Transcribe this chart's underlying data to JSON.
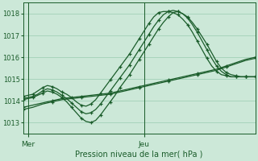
{
  "bg_color": "#cce8d8",
  "grid_color": "#99ccb0",
  "line_color": "#1a5c2a",
  "axis_color": "#1a5c2a",
  "xlabel": "Pression niveau de la mer( hPa )",
  "ylim": [
    1012.5,
    1018.5
  ],
  "yticks": [
    1013,
    1014,
    1015,
    1016,
    1017,
    1018
  ],
  "xlim": [
    0,
    48
  ],
  "mer_x": 1,
  "jeu_x": 25,
  "figsize": [
    3.2,
    2.0
  ],
  "dpi": 100,
  "series_flat_0": {
    "x": [
      0,
      2,
      4,
      6,
      8,
      10,
      12,
      14,
      16,
      18,
      20,
      22,
      24,
      26,
      28,
      30,
      32,
      34,
      36,
      38,
      40,
      42,
      44,
      46,
      48
    ],
    "y": [
      1013.7,
      1013.8,
      1013.9,
      1014.0,
      1014.1,
      1014.15,
      1014.2,
      1014.25,
      1014.3,
      1014.35,
      1014.45,
      1014.55,
      1014.65,
      1014.75,
      1014.85,
      1014.95,
      1015.05,
      1015.15,
      1015.25,
      1015.35,
      1015.45,
      1015.6,
      1015.75,
      1015.9,
      1016.0
    ]
  },
  "series_flat_1": {
    "x": [
      0,
      2,
      4,
      6,
      8,
      10,
      12,
      14,
      16,
      18,
      20,
      22,
      24,
      26,
      28,
      30,
      32,
      34,
      36,
      38,
      40,
      42,
      44,
      46,
      48
    ],
    "y": [
      1013.6,
      1013.7,
      1013.85,
      1013.95,
      1014.05,
      1014.1,
      1014.15,
      1014.2,
      1014.25,
      1014.3,
      1014.4,
      1014.5,
      1014.6,
      1014.7,
      1014.8,
      1014.9,
      1015.0,
      1015.1,
      1015.2,
      1015.3,
      1015.4,
      1015.55,
      1015.7,
      1015.85,
      1015.95
    ]
  },
  "series_dip_0": {
    "x": [
      0,
      1,
      2,
      3,
      4,
      5,
      6,
      7,
      8,
      9,
      10,
      11,
      12,
      13,
      14,
      15,
      16,
      17,
      18,
      19,
      20,
      21,
      22,
      23,
      24,
      25,
      26,
      27,
      28,
      29,
      30,
      31,
      32,
      33,
      34,
      35,
      36,
      37,
      38,
      39,
      40,
      41,
      42,
      43,
      44,
      45,
      46,
      47,
      48
    ],
    "y": [
      1014.05,
      1014.1,
      1014.15,
      1014.25,
      1014.35,
      1014.45,
      1014.4,
      1014.3,
      1014.15,
      1013.95,
      1013.7,
      1013.45,
      1013.2,
      1013.05,
      1013.0,
      1013.1,
      1013.35,
      1013.65,
      1013.95,
      1014.25,
      1014.6,
      1014.9,
      1015.2,
      1015.55,
      1015.9,
      1016.25,
      1016.6,
      1016.95,
      1017.3,
      1017.6,
      1017.85,
      1018.05,
      1018.1,
      1018.0,
      1017.85,
      1017.6,
      1017.3,
      1016.95,
      1016.6,
      1016.2,
      1015.8,
      1015.5,
      1015.3,
      1015.2,
      1015.15,
      1015.1,
      1015.1,
      1015.1,
      1015.1
    ]
  },
  "series_dip_1": {
    "x": [
      0,
      1,
      2,
      3,
      4,
      5,
      6,
      7,
      8,
      9,
      10,
      11,
      12,
      13,
      14,
      15,
      16,
      17,
      18,
      19,
      20,
      21,
      22,
      23,
      24,
      25,
      26,
      27,
      28,
      29,
      30,
      31,
      32,
      33,
      34,
      35,
      36,
      37,
      38,
      39,
      40,
      41,
      42,
      43,
      44,
      45,
      46,
      47,
      48
    ],
    "y": [
      1014.1,
      1014.15,
      1014.2,
      1014.3,
      1014.45,
      1014.55,
      1014.5,
      1014.4,
      1014.25,
      1014.1,
      1013.9,
      1013.7,
      1013.5,
      1013.4,
      1013.45,
      1013.6,
      1013.85,
      1014.15,
      1014.45,
      1014.75,
      1015.05,
      1015.35,
      1015.65,
      1016.0,
      1016.35,
      1016.7,
      1017.05,
      1017.4,
      1017.7,
      1017.95,
      1018.1,
      1018.15,
      1018.1,
      1018.0,
      1017.8,
      1017.5,
      1017.15,
      1016.75,
      1016.35,
      1015.95,
      1015.6,
      1015.35,
      1015.2,
      1015.1,
      1015.1,
      1015.1,
      1015.1,
      1015.1,
      1015.1
    ]
  },
  "series_dip_2": {
    "x": [
      0,
      1,
      2,
      3,
      4,
      5,
      6,
      7,
      8,
      9,
      10,
      11,
      12,
      13,
      14,
      15,
      16,
      17,
      18,
      19,
      20,
      21,
      22,
      23,
      24,
      25,
      26,
      27,
      28,
      29,
      30,
      31,
      32,
      33,
      34,
      35,
      36,
      37,
      38,
      39,
      40,
      41,
      42,
      43,
      44,
      45,
      46,
      47,
      48
    ],
    "y": [
      1014.2,
      1014.25,
      1014.3,
      1014.45,
      1014.6,
      1014.7,
      1014.65,
      1014.55,
      1014.4,
      1014.3,
      1014.15,
      1013.95,
      1013.8,
      1013.75,
      1013.85,
      1014.05,
      1014.35,
      1014.65,
      1014.95,
      1015.25,
      1015.55,
      1015.85,
      1016.15,
      1016.5,
      1016.85,
      1017.2,
      1017.55,
      1017.85,
      1018.05,
      1018.1,
      1018.1,
      1018.05,
      1017.95,
      1017.75,
      1017.5,
      1017.15,
      1016.75,
      1016.35,
      1015.95,
      1015.6,
      1015.35,
      1015.2,
      1015.15,
      1015.1,
      1015.1,
      1015.1,
      1015.1,
      1015.1,
      1015.1
    ]
  }
}
